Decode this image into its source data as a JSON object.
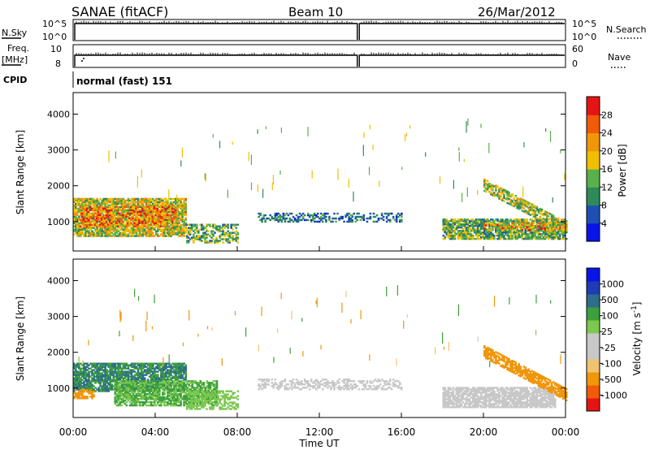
{
  "header": {
    "station": "SANAE (fitACF)",
    "beam": "Beam 10",
    "date": "26/Mar/2012"
  },
  "aux_panels": {
    "nsky_label": "N.Sky",
    "nsky_ticks": [
      "10^5",
      "10^0"
    ],
    "nsearch_label": "N.Search",
    "nsearch_ticks": [
      "10^5",
      "10^0"
    ],
    "freq_label": "Freq.",
    "freq_unit": "[MHz]",
    "freq_ticks": [
      "10",
      "8"
    ],
    "nave_label": "Nave",
    "nave_ticks": [
      "60",
      "0"
    ],
    "cpid_label": "CPID",
    "cpid_value": "normal (fast) 151",
    "data_gap_hours": [
      13.85,
      13.95
    ]
  },
  "colors": {
    "power_scale": [
      "#0a14e8",
      "#1e50b4",
      "#2e8a5a",
      "#5ab04a",
      "#f0c000",
      "#f0960a",
      "#f05a0a",
      "#e61414"
    ],
    "velocity_scale": [
      "#e61414",
      "#f05a0a",
      "#f0960a",
      "#f0c36e",
      "#c8c8c8",
      "#c8c8c8",
      "#7cc850",
      "#3ca03c",
      "#2e6e8c",
      "#1e3cb4",
      "#0a14e8"
    ],
    "ground_scatter": "#bebebe"
  },
  "chart_data": [
    {
      "type": "heatmap",
      "title": "",
      "ylabel": "Slant Range [km]",
      "xlabel": "",
      "xlim": [
        0,
        24
      ],
      "ylim": [
        180,
        4600
      ],
      "yticks": [
        "1000",
        "2000",
        "3000",
        "4000"
      ],
      "colorbar": {
        "label": "Power [dB]",
        "range": [
          0,
          32
        ],
        "tick_labels": [
          "4",
          "8",
          "12",
          "16",
          "20",
          "24",
          "28"
        ]
      },
      "regions": [
        {
          "t0": 0.0,
          "t1": 5.5,
          "r0": 580,
          "r1": 1650,
          "value": 17,
          "density": 0.85
        },
        {
          "t0": 0.3,
          "t1": 5.0,
          "r0": 850,
          "r1": 1400,
          "value": 24,
          "density": 0.5
        },
        {
          "t0": 5.5,
          "t1": 8.0,
          "r0": 400,
          "r1": 900,
          "value": 13,
          "density": 0.55
        },
        {
          "t0": 9.0,
          "t1": 16.0,
          "r0": 980,
          "r1": 1250,
          "value": 8,
          "density": 0.4
        },
        {
          "t0": 18.0,
          "t1": 24.0,
          "r0": 500,
          "r1": 1050,
          "value": 13,
          "density": 0.8
        },
        {
          "t0": 20.0,
          "t1": 24.0,
          "r0": 750,
          "r1": 950,
          "value": 22,
          "density": 0.5
        },
        {
          "t0": 20.0,
          "t1": 24.0,
          "r0": 800,
          "r1": 2300,
          "value": 16,
          "density": 0.7,
          "diagonal": true
        }
      ]
    },
    {
      "type": "heatmap",
      "title": "",
      "ylabel": "Slant Range [km]",
      "xlabel": "Time UT",
      "xlim": [
        0,
        24
      ],
      "ylim": [
        180,
        4600
      ],
      "xticks": [
        "00:00",
        "04:00",
        "08:00",
        "12:00",
        "16:00",
        "20:00",
        "00:00"
      ],
      "yticks": [
        "1000",
        "2000",
        "3000",
        "4000"
      ],
      "colorbar": {
        "label": "Velocity [m s^-1]",
        "tick_labels": [
          "-1000",
          "-500",
          "-100",
          "-25",
          "25",
          "100",
          "500",
          "1000"
        ]
      },
      "regions": [
        {
          "t0": 0.0,
          "t1": 5.5,
          "r0": 900,
          "r1": 1700,
          "value": 500,
          "density": 0.8
        },
        {
          "t0": 0.0,
          "t1": 1.0,
          "r0": 700,
          "r1": 950,
          "value": -300,
          "density": 0.7
        },
        {
          "t0": 2.0,
          "t1": 7.0,
          "r0": 500,
          "r1": 1200,
          "value": 100,
          "density": 0.75
        },
        {
          "t0": 5.5,
          "t1": 8.0,
          "r0": 400,
          "r1": 900,
          "value": 60,
          "density": 0.45
        },
        {
          "t0": 9.0,
          "t1": 16.0,
          "r0": 950,
          "r1": 1250,
          "value": 0,
          "density": 0.45
        },
        {
          "t0": 18.0,
          "t1": 23.5,
          "r0": 450,
          "r1": 1000,
          "value": 0,
          "density": 0.8
        },
        {
          "t0": 20.0,
          "t1": 24.0,
          "r0": 700,
          "r1": 2400,
          "value": -400,
          "density": 0.75,
          "diagonal": true
        }
      ]
    }
  ]
}
